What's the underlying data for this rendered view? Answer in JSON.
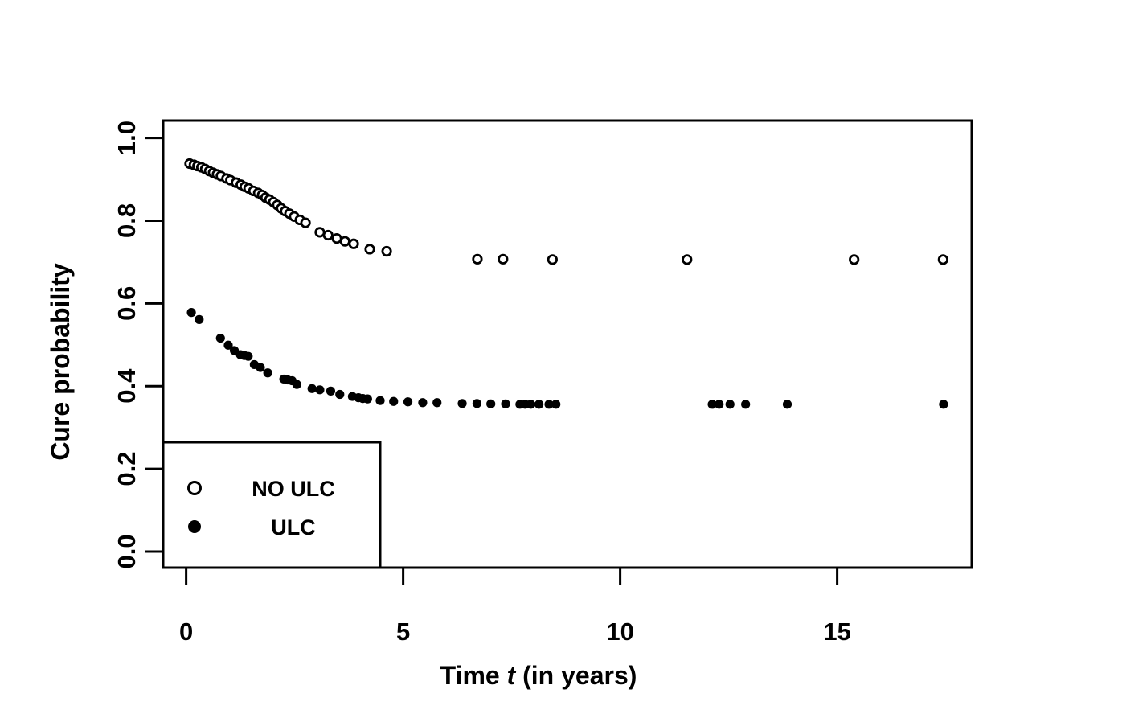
{
  "figure": {
    "background_color": "#ffffff",
    "ink_color": "#000000"
  },
  "chart_data": {
    "type": "scatter",
    "title": "",
    "xlabel_prefix": "Time ",
    "xlabel_italic": "t",
    "xlabel_suffix": " (in years)",
    "ylabel": "Cure probability",
    "xlim": [
      -0.53,
      18.1
    ],
    "ylim": [
      -0.039,
      1.042
    ],
    "xticks": [
      0,
      5,
      10,
      15
    ],
    "xtick_labels": [
      "0",
      "5",
      "10",
      "15"
    ],
    "yticks": [
      0.0,
      0.2,
      0.4,
      0.6,
      0.8,
      1.0
    ],
    "ytick_labels": [
      "0.0",
      "0.2",
      "0.4",
      "0.6",
      "0.8",
      "1.0"
    ],
    "grid": false,
    "legend": {
      "position": "bottom-left",
      "entries": [
        {
          "label": "NO ULC",
          "marker": "open-circle"
        },
        {
          "label": "ULC",
          "marker": "filled-circle"
        }
      ]
    },
    "series": [
      {
        "name": "NO ULC",
        "marker": "open-circle",
        "marker_radius": 5.2,
        "marker_stroke_width": 2.8,
        "points": [
          [
            0.08,
            0.938
          ],
          [
            0.18,
            0.935
          ],
          [
            0.26,
            0.932
          ],
          [
            0.35,
            0.929
          ],
          [
            0.44,
            0.925
          ],
          [
            0.53,
            0.92
          ],
          [
            0.62,
            0.916
          ],
          [
            0.71,
            0.912
          ],
          [
            0.8,
            0.908
          ],
          [
            0.93,
            0.902
          ],
          [
            1.02,
            0.898
          ],
          [
            1.15,
            0.892
          ],
          [
            1.26,
            0.887
          ],
          [
            1.35,
            0.882
          ],
          [
            1.44,
            0.878
          ],
          [
            1.55,
            0.872
          ],
          [
            1.66,
            0.867
          ],
          [
            1.75,
            0.862
          ],
          [
            1.83,
            0.856
          ],
          [
            1.92,
            0.851
          ],
          [
            2.01,
            0.845
          ],
          [
            2.1,
            0.838
          ],
          [
            2.19,
            0.83
          ],
          [
            2.28,
            0.823
          ],
          [
            2.38,
            0.817
          ],
          [
            2.49,
            0.81
          ],
          [
            2.62,
            0.802
          ],
          [
            2.75,
            0.795
          ],
          [
            3.08,
            0.772
          ],
          [
            3.27,
            0.765
          ],
          [
            3.47,
            0.757
          ],
          [
            3.66,
            0.75
          ],
          [
            3.86,
            0.744
          ],
          [
            4.23,
            0.731
          ],
          [
            4.62,
            0.726
          ],
          [
            6.71,
            0.707
          ],
          [
            7.3,
            0.707
          ],
          [
            8.44,
            0.706
          ],
          [
            11.54,
            0.706
          ],
          [
            15.39,
            0.706
          ],
          [
            17.44,
            0.706
          ]
        ]
      },
      {
        "name": "ULC",
        "marker": "filled-circle",
        "marker_radius": 5.6,
        "marker_stroke_width": 0,
        "points": [
          [
            0.12,
            0.578
          ],
          [
            0.3,
            0.561
          ],
          [
            0.79,
            0.516
          ],
          [
            0.97,
            0.499
          ],
          [
            1.11,
            0.486
          ],
          [
            1.25,
            0.476
          ],
          [
            1.34,
            0.474
          ],
          [
            1.43,
            0.472
          ],
          [
            1.57,
            0.452
          ],
          [
            1.71,
            0.445
          ],
          [
            1.88,
            0.432
          ],
          [
            2.25,
            0.417
          ],
          [
            2.34,
            0.415
          ],
          [
            2.44,
            0.413
          ],
          [
            2.55,
            0.404
          ],
          [
            2.9,
            0.394
          ],
          [
            3.08,
            0.391
          ],
          [
            3.33,
            0.388
          ],
          [
            3.54,
            0.38
          ],
          [
            3.83,
            0.375
          ],
          [
            3.97,
            0.372
          ],
          [
            4.07,
            0.37
          ],
          [
            4.18,
            0.369
          ],
          [
            4.47,
            0.365
          ],
          [
            4.78,
            0.363
          ],
          [
            5.11,
            0.362
          ],
          [
            5.45,
            0.36
          ],
          [
            5.78,
            0.36
          ],
          [
            6.36,
            0.358
          ],
          [
            6.7,
            0.358
          ],
          [
            7.02,
            0.357
          ],
          [
            7.36,
            0.357
          ],
          [
            7.69,
            0.356
          ],
          [
            7.81,
            0.356
          ],
          [
            7.94,
            0.356
          ],
          [
            8.13,
            0.356
          ],
          [
            8.36,
            0.356
          ],
          [
            8.52,
            0.356
          ],
          [
            12.12,
            0.356
          ],
          [
            12.28,
            0.356
          ],
          [
            12.53,
            0.356
          ],
          [
            12.89,
            0.356
          ],
          [
            13.85,
            0.356
          ],
          [
            17.45,
            0.356
          ]
        ]
      }
    ]
  }
}
